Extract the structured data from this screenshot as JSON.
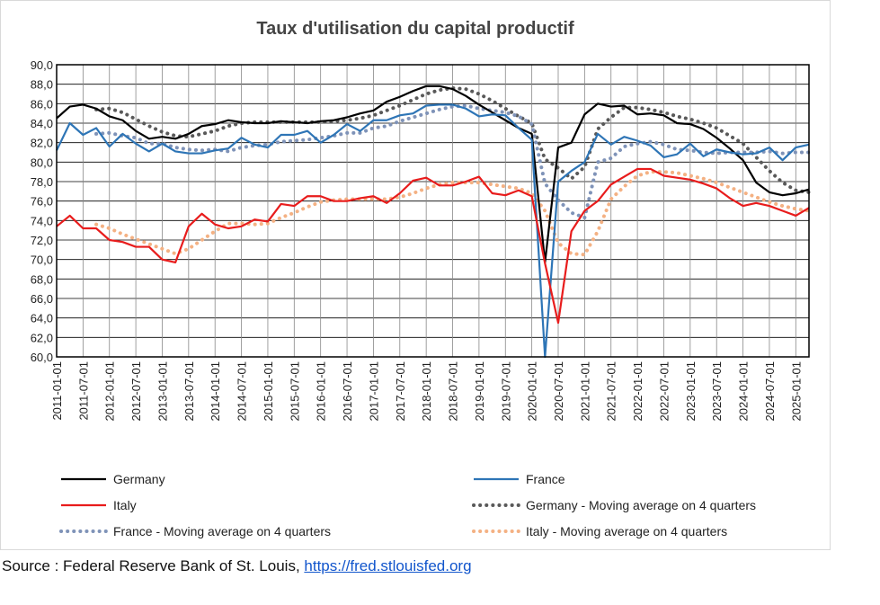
{
  "chart_data": {
    "type": "line",
    "title": "Taux d'utilisation du capital productif",
    "xlabel": "",
    "ylabel": "",
    "ylim": [
      60,
      90
    ],
    "y_ticks": [
      "60,0",
      "62,0",
      "64,0",
      "66,0",
      "68,0",
      "70,0",
      "72,0",
      "74,0",
      "76,0",
      "78,0",
      "80,0",
      "82,0",
      "84,0",
      "86,0",
      "88,0",
      "90,0"
    ],
    "grid": true,
    "legend_placement": "bottom",
    "x_tick_labels": [
      "2011-01-01",
      "2011-07-01",
      "2012-01-01",
      "2012-07-01",
      "2013-01-01",
      "2013-07-01",
      "2014-01-01",
      "2014-07-01",
      "2015-01-01",
      "2015-07-01",
      "2016-01-01",
      "2016-07-01",
      "2017-01-01",
      "2017-07-01",
      "2018-01-01",
      "2018-07-01",
      "2019-01-01",
      "2019-07-01",
      "2020-01-01",
      "2020-07-01",
      "2021-01-01",
      "2021-07-01",
      "2022-01-01",
      "2022-07-01",
      "2023-01-01",
      "2023-07-01",
      "2024-01-01",
      "2024-07-01",
      "2025-01-01"
    ],
    "x": [
      "2011-01-01",
      "2011-04-01",
      "2011-07-01",
      "2011-10-01",
      "2012-01-01",
      "2012-04-01",
      "2012-07-01",
      "2012-10-01",
      "2013-01-01",
      "2013-04-01",
      "2013-07-01",
      "2013-10-01",
      "2014-01-01",
      "2014-04-01",
      "2014-07-01",
      "2014-10-01",
      "2015-01-01",
      "2015-04-01",
      "2015-07-01",
      "2015-10-01",
      "2016-01-01",
      "2016-04-01",
      "2016-07-01",
      "2016-10-01",
      "2017-01-01",
      "2017-04-01",
      "2017-07-01",
      "2017-10-01",
      "2018-01-01",
      "2018-04-01",
      "2018-07-01",
      "2018-10-01",
      "2019-01-01",
      "2019-04-01",
      "2019-07-01",
      "2019-10-01",
      "2020-01-01",
      "2020-04-01",
      "2020-07-01",
      "2020-10-01",
      "2021-01-01",
      "2021-04-01",
      "2021-07-01",
      "2021-10-01",
      "2022-01-01",
      "2022-04-01",
      "2022-07-01",
      "2022-10-01",
      "2023-01-01",
      "2023-04-01",
      "2023-07-01",
      "2023-10-01",
      "2024-01-01",
      "2024-04-01",
      "2024-07-01",
      "2024-10-01",
      "2025-01-01",
      "2025-04-01"
    ],
    "series": [
      {
        "name": "Germany",
        "color": "#000000",
        "style": "solid",
        "values": [
          84.5,
          85.7,
          85.9,
          85.5,
          84.7,
          84.3,
          83.2,
          82.4,
          82.6,
          82.4,
          82.9,
          83.7,
          83.9,
          84.3,
          84.1,
          84.0,
          84.0,
          84.2,
          84.1,
          84.0,
          84.2,
          84.3,
          84.6,
          85.0,
          85.3,
          86.2,
          86.7,
          87.3,
          87.8,
          87.8,
          87.5,
          86.8,
          85.9,
          85.1,
          84.3,
          83.5,
          82.9,
          69.7,
          81.5,
          82.0,
          84.9,
          86.0,
          85.7,
          85.8,
          84.9,
          85.0,
          84.8,
          84.0,
          83.9,
          83.4,
          82.5,
          81.4,
          80.2,
          77.9,
          76.9,
          76.6,
          76.8,
          77.2
        ]
      },
      {
        "name": "France",
        "color": "#2e75b6",
        "style": "solid",
        "values": [
          81.2,
          84.0,
          82.8,
          83.5,
          81.6,
          82.9,
          81.9,
          81.1,
          81.9,
          81.1,
          80.9,
          80.9,
          81.2,
          81.4,
          82.5,
          81.8,
          81.5,
          82.8,
          82.8,
          83.2,
          82.0,
          82.8,
          83.9,
          83.2,
          84.3,
          84.3,
          84.8,
          85.0,
          85.8,
          85.9,
          85.9,
          85.5,
          84.7,
          84.9,
          84.8,
          83.5,
          82.3,
          60.0,
          78.0,
          79.1,
          80.0,
          82.9,
          81.8,
          82.6,
          82.2,
          81.7,
          80.5,
          80.8,
          81.9,
          80.6,
          81.3,
          81.0,
          80.8,
          80.9,
          81.5,
          80.2,
          81.5,
          81.8
        ]
      },
      {
        "name": "Italy",
        "color": "#e81c1c",
        "style": "solid",
        "values": [
          73.4,
          74.5,
          73.2,
          73.2,
          72.0,
          71.8,
          71.3,
          71.3,
          70.0,
          69.7,
          73.4,
          74.7,
          73.6,
          73.2,
          73.4,
          74.1,
          73.9,
          75.7,
          75.5,
          76.5,
          76.5,
          76.0,
          76.0,
          76.3,
          76.5,
          75.8,
          76.8,
          78.1,
          78.4,
          77.6,
          77.6,
          78.0,
          78.5,
          76.8,
          76.6,
          77.1,
          76.5,
          69.6,
          63.5,
          72.9,
          75.0,
          76.0,
          77.7,
          78.5,
          79.3,
          79.3,
          78.6,
          78.4,
          78.2,
          77.8,
          77.3,
          76.3,
          75.5,
          75.8,
          75.5,
          75.0,
          74.5,
          75.3
        ]
      },
      {
        "name": "Germany - Moving average on 4 quarters",
        "color": "#595959",
        "style": "dotted",
        "values": [
          null,
          null,
          null,
          85.4,
          85.5,
          85.1,
          84.4,
          83.7,
          83.1,
          82.7,
          82.6,
          82.9,
          83.2,
          83.7,
          84.0,
          84.1,
          84.1,
          84.1,
          84.1,
          84.1,
          84.1,
          84.2,
          84.3,
          84.5,
          84.8,
          85.3,
          85.8,
          86.4,
          87.0,
          87.4,
          87.6,
          87.5,
          87.0,
          86.3,
          85.5,
          84.7,
          84.0,
          80.3,
          79.4,
          78.3,
          79.5,
          83.4,
          84.6,
          85.6,
          85.6,
          85.4,
          85.1,
          84.7,
          84.4,
          84.0,
          83.5,
          82.7,
          81.9,
          80.5,
          79.1,
          77.9,
          77.1,
          76.9
        ]
      },
      {
        "name": "France - Moving average on 4 quarters",
        "color": "#7f93b8",
        "style": "dotted",
        "values": [
          null,
          null,
          null,
          82.9,
          83.0,
          82.7,
          82.5,
          81.9,
          81.9,
          81.5,
          81.3,
          81.2,
          81.3,
          81.1,
          81.5,
          81.7,
          81.8,
          82.1,
          82.2,
          82.3,
          82.5,
          82.7,
          83.0,
          83.0,
          83.5,
          83.7,
          84.2,
          84.6,
          85.0,
          85.4,
          85.7,
          85.8,
          85.5,
          85.3,
          85.1,
          84.7,
          83.9,
          77.8,
          76.1,
          74.8,
          74.3,
          80.0,
          80.4,
          81.6,
          81.9,
          82.1,
          81.8,
          81.3,
          81.2,
          81.0,
          80.9,
          81.0,
          81.0,
          81.0,
          81.1,
          80.9,
          81.0,
          81.0
        ]
      },
      {
        "name": "Italy - Moving average on 4 quarters",
        "color": "#f4b183",
        "style": "dotted",
        "values": [
          null,
          null,
          null,
          73.6,
          73.2,
          72.6,
          72.1,
          71.6,
          71.1,
          70.6,
          71.1,
          72.0,
          72.9,
          73.7,
          73.7,
          73.6,
          73.7,
          74.3,
          74.8,
          75.4,
          75.9,
          76.1,
          76.2,
          76.2,
          76.2,
          76.2,
          76.4,
          76.8,
          77.3,
          77.7,
          77.9,
          77.9,
          77.9,
          77.7,
          77.5,
          77.3,
          76.8,
          75.0,
          71.7,
          70.6,
          70.5,
          72.9,
          76.2,
          77.5,
          78.6,
          79.0,
          79.0,
          78.9,
          78.6,
          78.3,
          77.9,
          77.4,
          76.9,
          76.4,
          75.9,
          75.5,
          75.2,
          75.0
        ]
      }
    ]
  },
  "source": {
    "prefix": "Source : Federal Reserve Bank of St. Louis, ",
    "link_text": "https://fred.stlouisfed.org"
  }
}
